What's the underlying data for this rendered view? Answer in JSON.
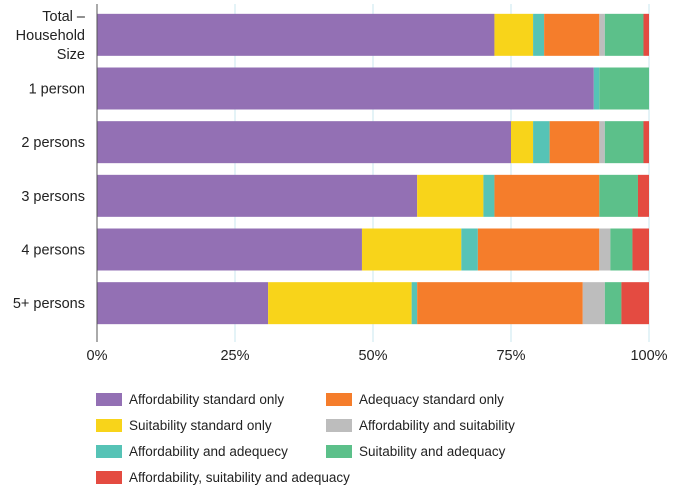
{
  "chart_data": {
    "type": "bar",
    "orientation": "horizontal",
    "stacked": true,
    "categories": [
      "Total – Household Size",
      "1 person",
      "2 persons",
      "3 persons",
      "4 persons",
      "5+ persons"
    ],
    "category_lines": [
      [
        "Total –",
        "Household",
        "Size"
      ],
      [
        "1 person"
      ],
      [
        "2 persons"
      ],
      [
        "3 persons"
      ],
      [
        "4 persons"
      ],
      [
        "5+ persons"
      ]
    ],
    "xlim": [
      0,
      100
    ],
    "xticks": [
      "0%",
      "25%",
      "50%",
      "75%",
      "100%"
    ],
    "xtick_values": [
      0,
      25,
      50,
      75,
      100
    ],
    "grid": true,
    "legend_position": "bottom",
    "series": [
      {
        "name": "Affordability standard only",
        "color": "#9370b4",
        "values": [
          72,
          90,
          75,
          58,
          48,
          31
        ]
      },
      {
        "name": "Suitability standard only",
        "color": "#f8d41a",
        "values": [
          7,
          0,
          4,
          12,
          18,
          26
        ]
      },
      {
        "name": "Affordability and adequecy",
        "color": "#56c3b6",
        "values": [
          2,
          1,
          3,
          2,
          3,
          1
        ]
      },
      {
        "name": "Adequacy standard only",
        "color": "#f57d2b",
        "values": [
          10,
          0,
          9,
          19,
          22,
          30
        ]
      },
      {
        "name": "Affordability and suitability",
        "color": "#bdbdbd",
        "values": [
          1,
          0,
          1,
          0,
          2,
          4
        ]
      },
      {
        "name": "Suitability and adequacy",
        "color": "#5cc08a",
        "values": [
          7,
          9,
          7,
          7,
          4,
          3
        ]
      },
      {
        "name": "Affordability, suitability and adequacy",
        "color": "#e44b41",
        "values": [
          1,
          0,
          1,
          2,
          3,
          5
        ]
      }
    ]
  },
  "legend": {
    "items": [
      "Affordability standard only",
      "Adequacy standard only",
      "Suitability standard only",
      "Affordability and suitability",
      "Affordability and adequecy",
      "Suitability and adequacy",
      "Affordability, suitability and adequacy"
    ],
    "colors": [
      "#9370b4",
      "#f57d2b",
      "#f8d41a",
      "#bdbdbd",
      "#56c3b6",
      "#5cc08a",
      "#e44b41"
    ]
  }
}
